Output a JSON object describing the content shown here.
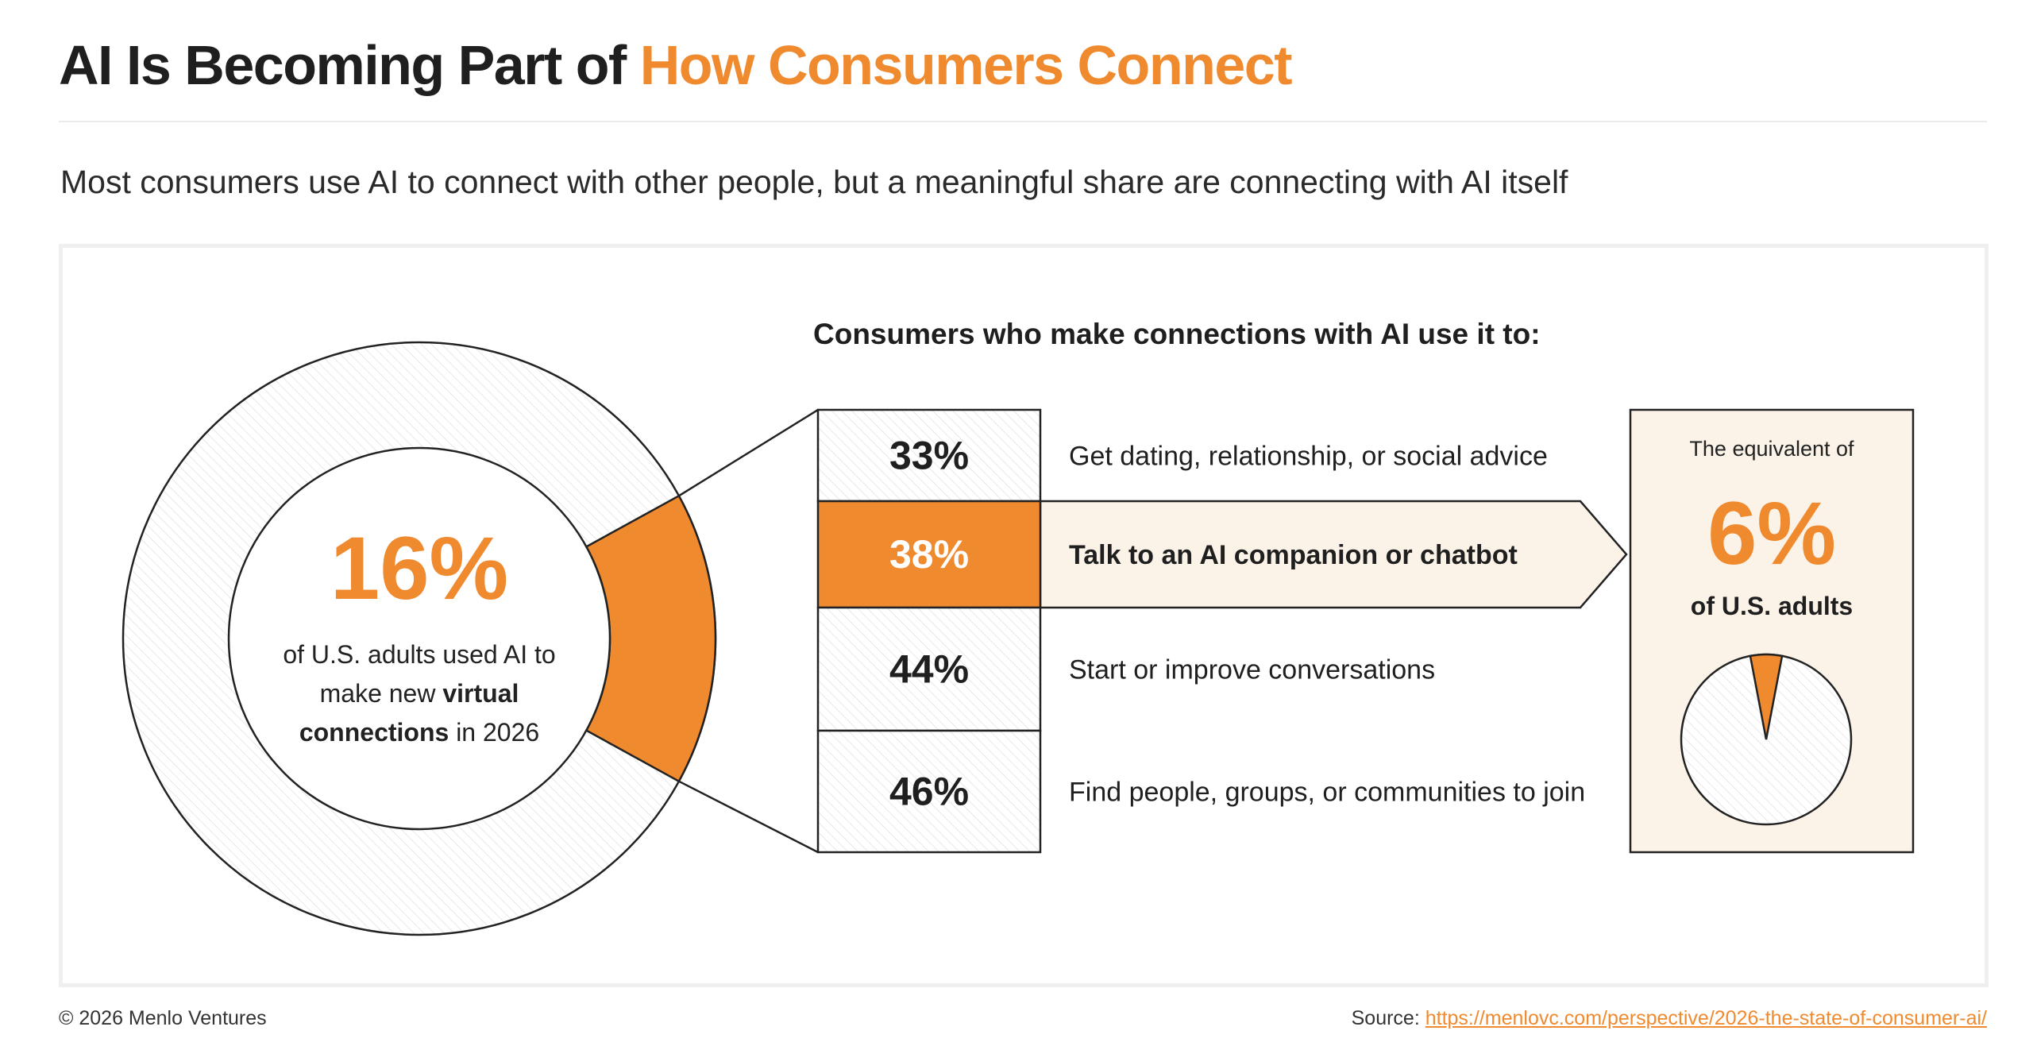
{
  "header": {
    "title_prefix": "AI Is Becoming Part of",
    "title_accent": "How Consumers Connect",
    "subtitle": "Most consumers use AI to connect with other people, but a meaningful share are connecting with AI itself"
  },
  "colors": {
    "accent": "#F08A2F",
    "highlight_bg": "#FCF3E8",
    "ink": "#1f1f1f"
  },
  "chart_data": [
    {
      "type": "donut",
      "value": 16,
      "total": 100,
      "center_value": "16%",
      "caption": {
        "line1": "of U.S. adults used AI to",
        "line2_prefix": "make new",
        "line2_bold": "virtual",
        "line3_bold": "connections",
        "line3_suffix": "in 2026"
      }
    },
    {
      "type": "table",
      "title": "Consumers who make connections with AI use it to:",
      "rows": [
        {
          "value": 33,
          "value_label": "33%",
          "label": "Get dating, relationship, or social advice",
          "highlight": false
        },
        {
          "value": 38,
          "value_label": "38%",
          "label": "Talk to an AI companion or chatbot",
          "highlight": true
        },
        {
          "value": 44,
          "value_label": "44%",
          "label": "Start or improve conversations",
          "highlight": false
        },
        {
          "value": 46,
          "value_label": "46%",
          "label": "Find people, groups, or communities to join",
          "highlight": false
        }
      ]
    },
    {
      "type": "pie",
      "value": 6,
      "total": 100,
      "top_text": "The equivalent of",
      "value_label": "6%",
      "unit_text": "of U.S. adults"
    }
  ],
  "footer": {
    "copyright": "© 2026 Menlo Ventures",
    "source_label": "Source:",
    "source_link": "https://menlovc.com/perspective/2026-the-state-of-consumer-ai/"
  }
}
